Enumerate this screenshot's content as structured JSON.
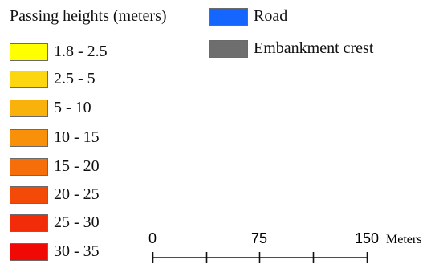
{
  "legend": {
    "title": "Passing heights (meters)",
    "classes": [
      {
        "label": "1.8 - 2.5",
        "color": "#FFFF00"
      },
      {
        "label": "2.5 - 5",
        "color": "#FCD60E"
      },
      {
        "label": "5 - 10",
        "color": "#F9B20C"
      },
      {
        "label": "10 - 15",
        "color": "#F8900A"
      },
      {
        "label": "15 - 20",
        "color": "#F56E0A"
      },
      {
        "label": "20 - 25",
        "color": "#F34A08"
      },
      {
        "label": "25 - 30",
        "color": "#F22C08"
      },
      {
        "label": "30 - 35",
        "color": "#F00A05"
      }
    ],
    "features": [
      {
        "label": "Road",
        "color": "#1565FF"
      },
      {
        "label": "Embankment crest",
        "color": "#6E6E6E"
      }
    ]
  },
  "scale_bar": {
    "labels": [
      "0",
      "75",
      "150"
    ],
    "unit": "Meters"
  }
}
